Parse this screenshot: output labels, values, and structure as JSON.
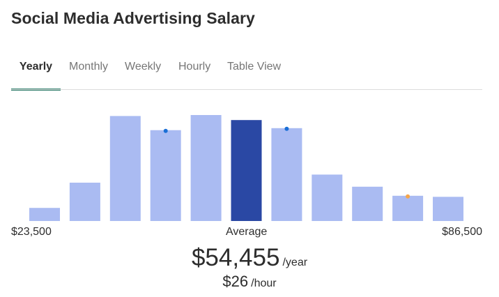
{
  "title": "Social Media Advertising Salary",
  "tabs": [
    {
      "label": "Yearly",
      "active": true
    },
    {
      "label": "Monthly",
      "active": false
    },
    {
      "label": "Weekly",
      "active": false
    },
    {
      "label": "Hourly",
      "active": false
    },
    {
      "label": "Table View",
      "active": false
    }
  ],
  "colors": {
    "bar": "#aabbf2",
    "highlight": "#2a48a4",
    "tab_accent": "#2e7d6b",
    "dot_blue": "#1a6fd6",
    "dot_orange": "#f5a54a"
  },
  "chart_data": {
    "type": "bar",
    "title": "",
    "x_range": [
      23500,
      86500
    ],
    "values": [
      13,
      38,
      104,
      90,
      105,
      100,
      92,
      46,
      34,
      25,
      24
    ],
    "highlight_index": 5,
    "markers": [
      {
        "index": 3,
        "color": "blue"
      },
      {
        "index": 6,
        "color": "blue"
      },
      {
        "index": 9,
        "color": "orange"
      }
    ],
    "x_min_label": "$23,500",
    "x_mid_label": "Average",
    "x_max_label": "$86,500"
  },
  "summary": {
    "yearly_value": "$54,455",
    "yearly_unit": "/year",
    "hourly_value": "$26",
    "hourly_unit": "/hour"
  }
}
